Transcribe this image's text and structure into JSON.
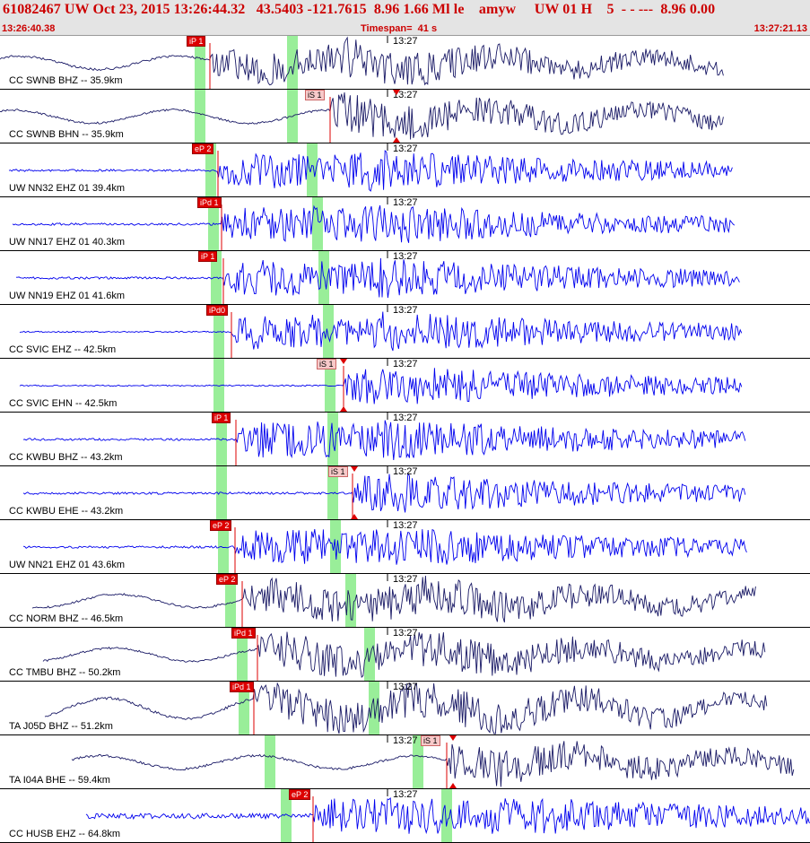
{
  "header": {
    "event_summary": "61082467 UW Oct 23, 2015 13:26:44.32   43.5403 -121.7615  8.96 1.66 Ml le    amyw     UW 01 H    5  - - ---  8.96 0.00",
    "start_time": "13:26:40.38",
    "timespan": "Timespan=  41 s",
    "end_time": "13:27:21.13"
  },
  "colors": {
    "accent": "#cc0000",
    "pick_bar": "#99ee99",
    "trace_blue": "#0000ee",
    "trace_navy": "#1a1a66"
  },
  "icons": {
    "pick_marker": "red-triangle-icon"
  },
  "traces": [
    {
      "label": "CC SWNB BHZ -- 35.9km",
      "time_label": "13:27",
      "color": "navy",
      "pick": "iP 1",
      "pick_type": "P"
    },
    {
      "label": "CC SWNB BHN -- 35.9km",
      "time_label": "13:27",
      "color": "navy",
      "pick": "iS 1",
      "pick_type": "S"
    },
    {
      "label": "UW NN32 EHZ 01 39.4km",
      "time_label": "13:27",
      "color": "blue",
      "pick": "eP 2",
      "pick_type": "P"
    },
    {
      "label": "UW NN17 EHZ 01 40.3km",
      "time_label": "13:27",
      "color": "blue",
      "pick": "iPd 1",
      "pick_type": "P"
    },
    {
      "label": "UW NN19 EHZ 01 41.6km",
      "time_label": "13:27",
      "color": "blue",
      "pick": "iP 1",
      "pick_type": "P"
    },
    {
      "label": "CC SVIC EHZ -- 42.5km",
      "time_label": "13:27",
      "color": "blue",
      "pick": "iPd0",
      "pick_type": "P"
    },
    {
      "label": "CC SVIC EHN -- 42.5km",
      "time_label": "13:27",
      "color": "blue",
      "pick": "iS 1",
      "pick_type": "S"
    },
    {
      "label": "CC KWBU BHZ -- 43.2km",
      "time_label": "13:27",
      "color": "blue",
      "pick": "iP 1",
      "pick_type": "P"
    },
    {
      "label": "CC KWBU EHE -- 43.2km",
      "time_label": "13:27",
      "color": "blue",
      "pick": "iS 1",
      "pick_type": "S"
    },
    {
      "label": "UW NN21 EHZ 01 43.6km",
      "time_label": "13:27",
      "color": "blue",
      "pick": "eP 2",
      "pick_type": "P"
    },
    {
      "label": "CC NORM BHZ -- 46.5km",
      "time_label": "13:27",
      "color": "navy",
      "pick": "eP 2",
      "pick_type": "P"
    },
    {
      "label": "CC TMBU BHZ -- 50.2km",
      "time_label": "13:27",
      "color": "navy",
      "pick": "iPd 1",
      "pick_type": "P"
    },
    {
      "label": "TA J05D BHZ -- 51.2km",
      "time_label": "13:27",
      "color": "navy",
      "pick": "iPd 1",
      "pick_type": "P"
    },
    {
      "label": "TA I04A BHE -- 59.4km",
      "time_label": "13:27",
      "color": "navy",
      "pick": "iS 1",
      "pick_type": "S"
    },
    {
      "label": "CC HUSB EHZ -- 64.8km",
      "time_label": "13:27",
      "color": "blue",
      "pick": "eP 2",
      "pick_type": "P"
    }
  ]
}
